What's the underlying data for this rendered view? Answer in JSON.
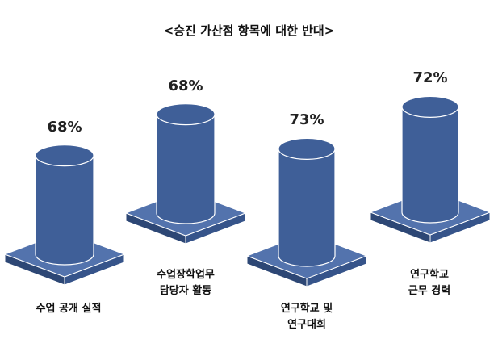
{
  "chart_data": {
    "type": "bar",
    "title": "<승진 가산점 항목에 대한 반대>",
    "categories": [
      [
        "수업 공개 실적"
      ],
      [
        "수업장학업무",
        "담당자 활동"
      ],
      [
        "연구학교 및",
        "연구대회"
      ],
      [
        "연구학교",
        "근무 경력"
      ]
    ],
    "values": [
      68,
      68,
      73,
      72
    ],
    "data_labels": [
      "68%",
      "68%",
      "73%",
      "72%"
    ],
    "ylim": [
      0,
      100
    ],
    "bar_color": "#3f5f98",
    "base_color": "#3f5f98",
    "style": "3d-cylinder-on-platform"
  }
}
